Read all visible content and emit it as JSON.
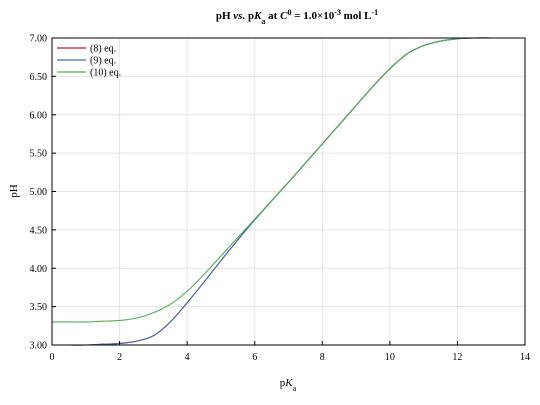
{
  "chart_data": {
    "type": "line",
    "title": {
      "parts": [
        {
          "text": "pH ",
          "style": "normal"
        },
        {
          "text": "vs.",
          "style": "italic"
        },
        {
          "text": " p",
          "style": "normal"
        },
        {
          "text": "K",
          "style": "italic"
        },
        {
          "text": "a",
          "style": "sub"
        },
        {
          "text": " at ",
          "style": "normal"
        },
        {
          "text": "C",
          "style": "italic"
        },
        {
          "text": "0",
          "style": "sup"
        },
        {
          "text": " = 1.0×10",
          "style": "normal"
        },
        {
          "text": "-3",
          "style": "sup"
        },
        {
          "text": " mol L",
          "style": "normal"
        },
        {
          "text": "-1",
          "style": "sup"
        }
      ]
    },
    "xlabel": {
      "main": "p",
      "italic": "K",
      "sub": "a"
    },
    "ylabel": "pH",
    "xlim": [
      0,
      14
    ],
    "ylim": [
      3.0,
      7.0
    ],
    "xticks": [
      "0",
      "2",
      "4",
      "6",
      "8",
      "10",
      "12",
      "14"
    ],
    "yticks": [
      "3.00",
      "3.50",
      "4.00",
      "4.50",
      "5.00",
      "5.50",
      "6.00",
      "6.50",
      "7.00"
    ],
    "grid": true,
    "legend": "top-left",
    "x": [
      0,
      0.5,
      1,
      1.5,
      2,
      2.5,
      3,
      3.5,
      4,
      4.5,
      5,
      5.5,
      6,
      6.5,
      7,
      7.5,
      8,
      8.5,
      9,
      9.5,
      10,
      10.5,
      11,
      11.5,
      12,
      12.5,
      13,
      13.5,
      14
    ],
    "series": [
      {
        "name": "(8) eq.",
        "color": "#c8102e",
        "values": [
          3.0,
          3.0,
          3.0,
          3.01,
          3.02,
          3.05,
          3.12,
          3.3,
          3.55,
          3.82,
          4.1,
          4.37,
          4.63,
          4.88,
          5.12,
          5.37,
          5.62,
          5.87,
          6.12,
          6.37,
          6.6,
          6.79,
          6.9,
          6.96,
          6.99,
          7.0,
          7.0,
          7.0,
          7.0
        ]
      },
      {
        "name": "(9) eq.",
        "color": "#3a6fb0",
        "values": [
          3.0,
          3.0,
          3.0,
          3.01,
          3.02,
          3.05,
          3.12,
          3.3,
          3.55,
          3.82,
          4.1,
          4.37,
          4.63,
          4.88,
          5.12,
          5.37,
          5.62,
          5.87,
          6.12,
          6.37,
          6.6,
          6.79,
          6.9,
          6.96,
          6.99,
          7.0,
          7.0,
          7.0,
          7.0
        ]
      },
      {
        "name": "(10) eq.",
        "color": "#4caf50",
        "values": [
          3.3,
          3.3,
          3.3,
          3.31,
          3.32,
          3.35,
          3.42,
          3.53,
          3.7,
          3.92,
          4.16,
          4.4,
          4.64,
          4.88,
          5.12,
          5.37,
          5.62,
          5.87,
          6.12,
          6.37,
          6.6,
          6.79,
          6.9,
          6.96,
          6.99,
          7.0,
          7.0,
          7.0,
          7.0
        ]
      }
    ]
  }
}
